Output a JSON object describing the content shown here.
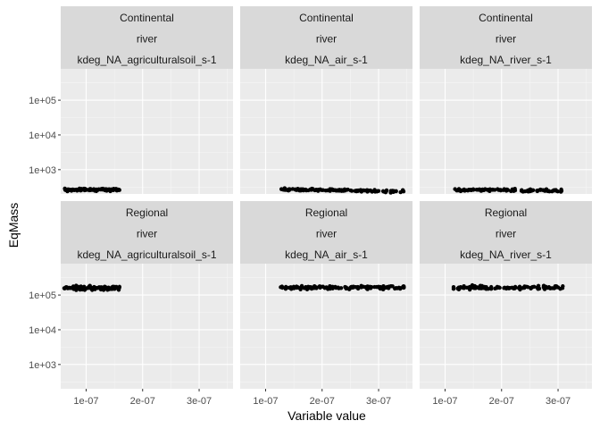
{
  "chart_data": {
    "type": "scatter",
    "facet_layout": "2x3 grid",
    "xlabel": "Variable value",
    "ylabel": "EqMass",
    "x_ticks": [
      1e-07,
      2e-07,
      3e-07
    ],
    "x_tick_labels": [
      "1e-07",
      "2e-07",
      "3e-07"
    ],
    "y_scale": "log10",
    "y_ticks": [
      1000,
      10000,
      100000
    ],
    "y_tick_labels": [
      "1e+03",
      "1e+04",
      "1e+05"
    ],
    "ylim": [
      200,
      800000
    ],
    "grid": true,
    "colors": {
      "panel_bg": "#ebebeb",
      "strip_bg": "#d9d9d9",
      "grid_major": "#ffffff",
      "point": "#000000"
    },
    "panels": [
      {
        "strip": [
          "Continental",
          "river",
          "kdeg_NA_agriculturalsoil_s-1"
        ],
        "xlim": [
          5.5e-08,
          3.6e-07
        ],
        "x_range": [
          6e-08,
          1.6e-07
        ],
        "y_center": 265,
        "y_spread": 30,
        "n": 90,
        "seed": 11,
        "trend": 0
      },
      {
        "strip": [
          "Continental",
          "river",
          "kdeg_NA_air_s-1"
        ],
        "xlim": [
          5.5e-08,
          3.6e-07
        ],
        "x_range": [
          1.25e-07,
          3.45e-07
        ],
        "y_center": 255,
        "y_spread": 30,
        "n": 120,
        "seed": 23,
        "trend": -0.15
      },
      {
        "strip": [
          "Continental",
          "river",
          "kdeg_NA_river_s-1"
        ],
        "xlim": [
          5.5e-08,
          3.6e-07
        ],
        "x_range": [
          1.15e-07,
          3.1e-07
        ],
        "y_center": 255,
        "y_spread": 30,
        "n": 110,
        "seed": 37,
        "trend": -0.05
      },
      {
        "strip": [
          "Regional",
          "river",
          "kdeg_NA_agriculturalsoil_s-1"
        ],
        "xlim": [
          5.5e-08,
          3.6e-07
        ],
        "x_range": [
          6e-08,
          1.6e-07
        ],
        "y_center": 160000,
        "y_spread": 30000,
        "n": 90,
        "seed": 41,
        "trend": 0
      },
      {
        "strip": [
          "Regional",
          "river",
          "kdeg_NA_air_s-1"
        ],
        "xlim": [
          5.5e-08,
          3.6e-07
        ],
        "x_range": [
          1.25e-07,
          3.45e-07
        ],
        "y_center": 165000,
        "y_spread": 30000,
        "n": 120,
        "seed": 53,
        "trend": 0
      },
      {
        "strip": [
          "Regional",
          "river",
          "kdeg_NA_river_s-1"
        ],
        "xlim": [
          5.5e-08,
          3.6e-07
        ],
        "x_range": [
          1.15e-07,
          3.1e-07
        ],
        "y_center": 165000,
        "y_spread": 30000,
        "n": 110,
        "seed": 67,
        "trend": 0
      }
    ]
  }
}
